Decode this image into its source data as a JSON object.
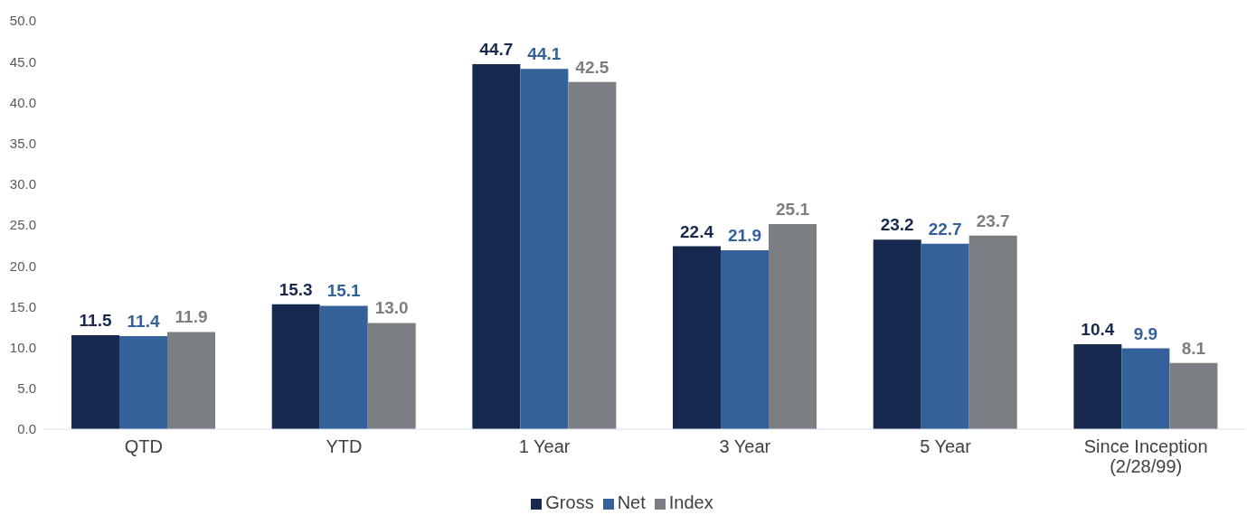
{
  "chart_data": {
    "type": "bar",
    "categories": [
      "QTD",
      "YTD",
      "1 Year",
      "3 Year",
      "5 Year",
      "Since Inception (2/28/99)"
    ],
    "series": [
      {
        "name": "Gross",
        "color": "#17294f",
        "values": [
          11.5,
          15.3,
          44.7,
          22.4,
          23.2,
          10.4
        ],
        "value_labels": [
          "11.5",
          "15.3",
          "44.7",
          "22.4",
          "23.2",
          "10.4"
        ]
      },
      {
        "name": "Net",
        "color": "#34619a",
        "values": [
          11.4,
          15.1,
          44.1,
          21.9,
          22.7,
          9.9
        ],
        "value_labels": [
          "11.4",
          "15.1",
          "44.1",
          "21.9",
          "22.7",
          "9.9"
        ]
      },
      {
        "name": "Index",
        "color": "#7b7e82",
        "values": [
          11.9,
          13.0,
          42.5,
          25.1,
          23.7,
          8.1
        ],
        "value_labels": [
          "11.9",
          "13.0",
          "42.5",
          "25.1",
          "23.7",
          "8.1"
        ]
      }
    ],
    "ylim": [
      0,
      50
    ],
    "yticks": [
      {
        "value": 0,
        "label": "0.0"
      },
      {
        "value": 5,
        "label": "5.0"
      },
      {
        "value": 10,
        "label": "10.0"
      },
      {
        "value": 15,
        "label": "15.0"
      },
      {
        "value": 20,
        "label": "20.0"
      },
      {
        "value": 25,
        "label": "25.0"
      },
      {
        "value": 30,
        "label": "30.0"
      },
      {
        "value": 35,
        "label": "35.0"
      },
      {
        "value": 40,
        "label": "40.0"
      },
      {
        "value": 45,
        "label": "45.0"
      },
      {
        "value": 50,
        "label": "50.0"
      }
    ],
    "grid": false,
    "legend": "bottom"
  }
}
